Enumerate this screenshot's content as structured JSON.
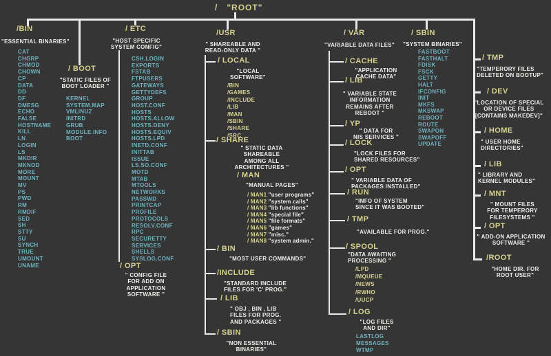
{
  "colors": {
    "background": "#353535",
    "directory": "#d6d28f",
    "description": "#f0eeea",
    "file": "#6fb3c0",
    "line": "#e9e9e9"
  },
  "root": {
    "label": "/   \"ROOT\""
  },
  "bin": {
    "name": "/BIN",
    "desc": "\"ESSENTIAL BINARIES\"",
    "files": [
      "CAT",
      "CHGRP",
      "CHMOD",
      "CHOWN",
      "CP",
      "DATA",
      "DD",
      "DF",
      "DMESG",
      "ECHO",
      "FALSE",
      "HOSTNAME",
      "KILL",
      "LN",
      "LOGIN",
      "LS",
      "MKDIR",
      "MKNOD",
      "MORE",
      "MOUNT",
      "MV",
      "PS",
      "PWD",
      "RM",
      "RMDIF",
      "SED",
      "SH",
      "STTY",
      "SU",
      "SYNCH",
      "TRUE",
      "UMOUNT",
      "UNAME"
    ]
  },
  "boot": {
    "name": "/ BOOT",
    "desc": "\"STATIC FILES OF\nBOOT LOADER \"",
    "files": [
      "KERNEL",
      "SYSTEM.MAP",
      "VMLINUZ",
      "INITRD",
      "GRUB",
      "MODULE.INFO",
      "BOOT"
    ]
  },
  "etc": {
    "name": "/ ETC",
    "desc": "\"HOST SPECIFIC\nSYSTEM CONFIG\"",
    "files": [
      "CSH.LOGIN",
      "EXPORTS",
      "FSTAB",
      "FTPUSERS",
      "GATEWAYS",
      "GETTYDEFS",
      "GROUP",
      "HOST.CONF",
      "HOSTS",
      "HOSTS.ALLOW",
      "HOSTS.DENY",
      "HOSTS.EQUIV",
      "HOSTS.LPD",
      "INETD.CONF",
      "INITTAB",
      "ISSUE",
      "LS.SO.CONF",
      "MOTD",
      "MTAB",
      "MTOOLS",
      "NETWORKS",
      "PASSWD",
      "PRINTCAP",
      "PROFILE",
      "PROTOCOLS",
      "RESOLV.CONF",
      "RPC",
      "SECURETTY",
      "SERVICES",
      "SHELLS",
      "SYSLOG.CONF"
    ],
    "opt": {
      "name": "/ OPT",
      "desc": "\" CONFIG FILE\nFOR ADD ON\nAPPLICATION\nSOFTWARE \""
    }
  },
  "usr": {
    "name": "/USR",
    "desc": "\" SHAREABLE AND\nREAD-ONLY DATA \"",
    "local": {
      "name": "/ LOCAL",
      "desc": "\"LOCAL\nSOFTWARE\"",
      "dirs": [
        "/BIN",
        "/GAMES",
        "/INCLUDE",
        "/LIB",
        "/MAN",
        "/SBIN",
        "/SHARE",
        "/SRC"
      ]
    },
    "share": {
      "name": "/ SHARE",
      "desc": "\" STATIC DATA\nSHAREABLE\nAMONG ALL\nARCHITECTURES \"",
      "man": {
        "name": "/ MAN",
        "desc": "\"MANUAL PAGES\"",
        "pages": [
          {
            "name": "/ MAN1",
            "desc": "\"user programs\""
          },
          {
            "name": "/ MAN2",
            "desc": "\"system calls\""
          },
          {
            "name": "/ MAN3",
            "desc": "\"lib functions\""
          },
          {
            "name": "/ MAN4",
            "desc": "\"special file\""
          },
          {
            "name": "/ MAN5",
            "desc": "\"file formats\""
          },
          {
            "name": "/ MAN6",
            "desc": "\"games\""
          },
          {
            "name": "/ MAN7",
            "desc": "\"misc.\""
          },
          {
            "name": "/ MAN8",
            "desc": "\"system admin.\""
          }
        ]
      }
    },
    "bin": {
      "name": "/ BIN",
      "desc": "\"MOST USER COMMANDS\""
    },
    "include": {
      "name": "/INCLUDE",
      "desc": "\"STANDARD INCLUDE\nFILES FOR  'C' PROG.\""
    },
    "lib": {
      "name": "/ LIB",
      "desc": "\" OBJ , BIN , LIB\nFILES FOR PROG.\nAND PACKAGES \""
    },
    "sbin": {
      "name": "/ SBIN",
      "desc": "\"NON ESSENTIAL\nBINARIES\""
    }
  },
  "var": {
    "name": "/ VAR",
    "desc": "\"VARIABLE DATA FILES\"",
    "cache": {
      "name": "/ CACHE",
      "desc": "\"APPLICATION\nCACHE DATA\""
    },
    "lib": {
      "name": "/ LIB",
      "desc": "\" VARIABLE STATE\nINFORMATION\nREMAINS  AFTER\nREBOOT \""
    },
    "yp": {
      "name": "/ YP",
      "desc": "\" DATA FOR\nNIS SERVICES \""
    },
    "lock": {
      "name": "/ LOCK",
      "desc": "\"LOCK FILES FOR\nSHARED RESOURCES\""
    },
    "opt": {
      "name": "/ OPT",
      "desc": "\"  VARIABLE DATA OF\nPACKAGES INSTALLED\""
    },
    "run": {
      "name": "/ RUN",
      "desc": "\"INFO OF SYSTEM\nSINCE IT WAS BOOTED\""
    },
    "tmp": {
      "name": "/ TMP",
      "desc": "\"AVAILABLE FOR PROG.\""
    },
    "spool": {
      "name": "/ SPOOL",
      "desc": "\"DATA AWAITING\nPROCESSING \"",
      "dirs": [
        "/LPD",
        "/MQUEUE",
        "/NEWS",
        "/RWHO",
        "/UUCP"
      ]
    },
    "log": {
      "name": "/ LOG",
      "desc": "\"LOG FILES\nAND DIR\"",
      "files": [
        "LASTLOG",
        "MESSAGES",
        "WTMP"
      ]
    }
  },
  "sbin": {
    "name": "/ SBIN",
    "desc": "\"SYSTEM BINARIES\"",
    "files": [
      "FASTBOOT",
      "FASTHALT",
      "FDISK",
      "FSCK",
      "GETTY",
      "HALT",
      "IFCONFIG",
      "INIT",
      "MKFS",
      "MKSWAP",
      "REBOOT",
      "ROUTE",
      "SWAPON",
      "SWAPOFF",
      "UPDATE"
    ]
  },
  "right": {
    "tmp": {
      "name": "/ TMP",
      "desc": "\"TEMPERORY FILES\nDELETED ON BOOTUP\""
    },
    "dev": {
      "name": "/ DEV",
      "desc": "\"LOCATION OF SPECIAL\nOR DEVICE FILES\n[CONTAINS MAKEDEV]\""
    },
    "home": {
      "name": "/ HOME",
      "desc": "\" USER HOME\nDIRECTORIES\""
    },
    "lib": {
      "name": "/ LIB",
      "desc": "\"  LIBRARY AND\nKERNEL MODULES\""
    },
    "mnt": {
      "name": "/ MNT",
      "desc": "\"  MOUNT FILES\nFOR TEMPERORY\nFILESYSTEMS \""
    },
    "opt": {
      "name": "/ OPT",
      "desc": "\" ADD-ON APPLICATION\nSOFTWARE \""
    },
    "root": {
      "name": "/ROOT",
      "desc": "\"HOME DIR. FOR\nROOT USER\""
    }
  }
}
